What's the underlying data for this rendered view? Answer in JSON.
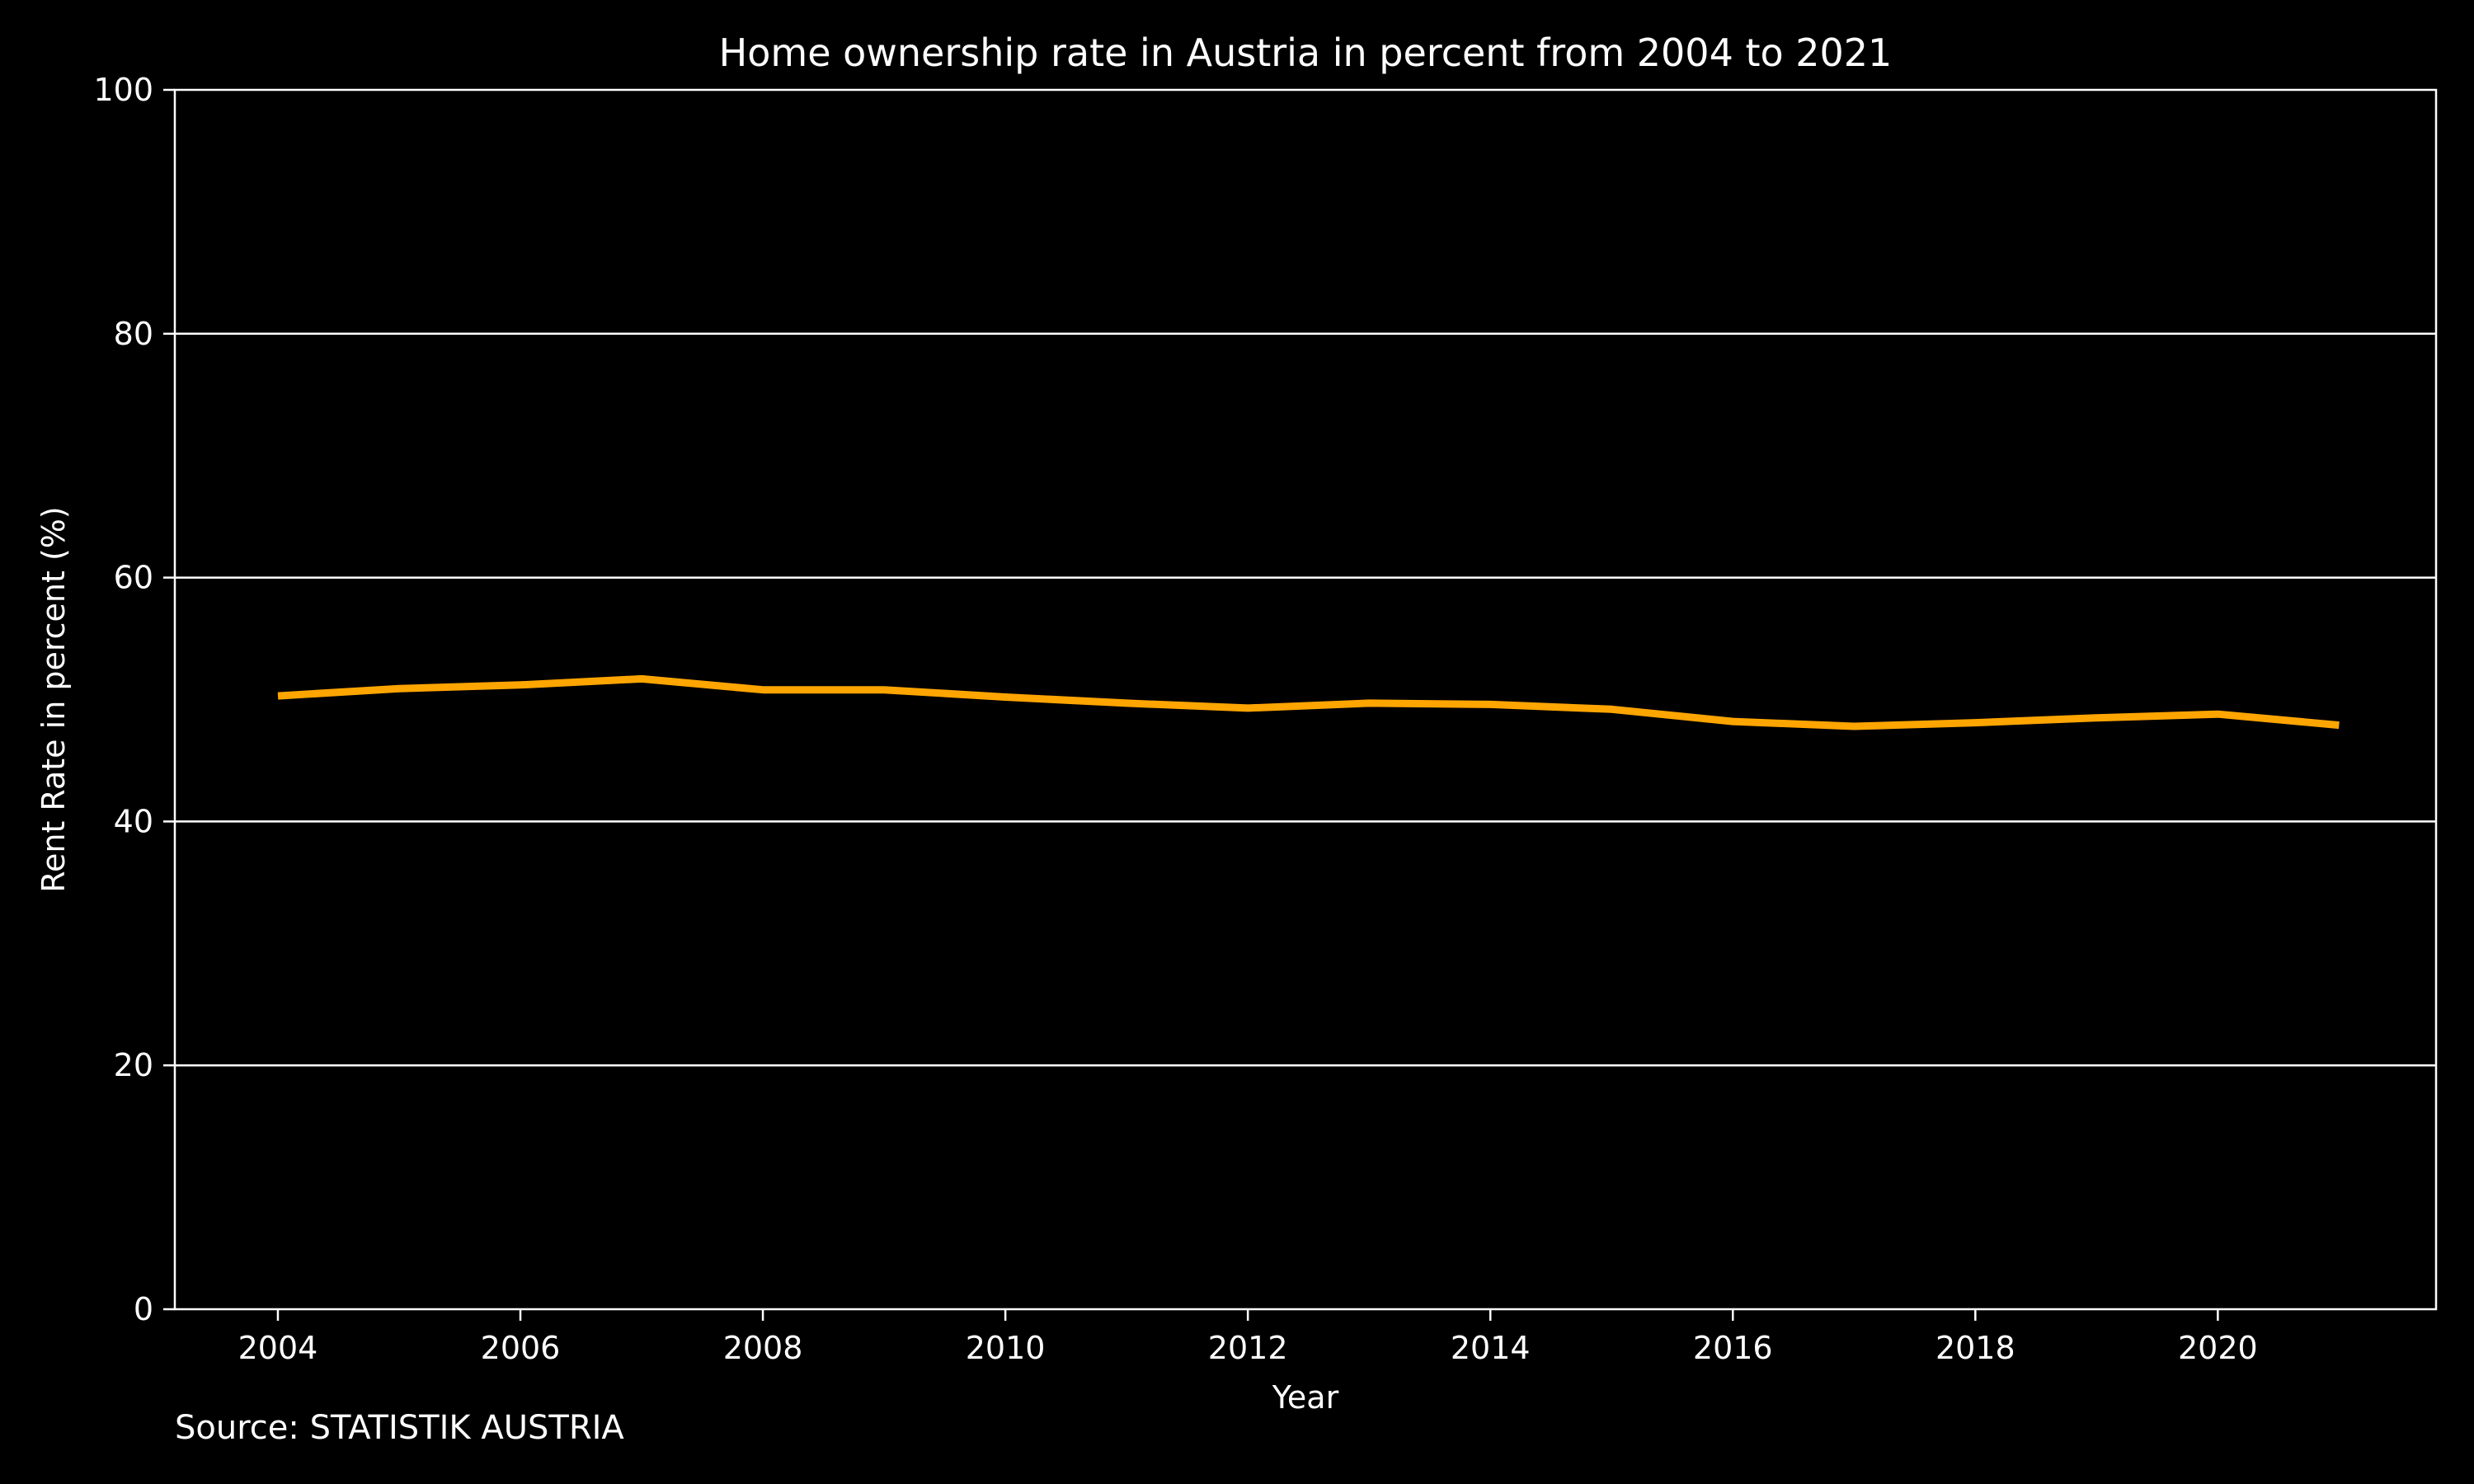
{
  "chart_data": {
    "type": "line",
    "title": "Home ownership rate in Austria in percent from 2004 to 2021",
    "xlabel": "Year",
    "ylabel": "Rent Rate in percent (%)",
    "x": [
      2004,
      2005,
      2006,
      2007,
      2008,
      2009,
      2010,
      2011,
      2012,
      2013,
      2014,
      2015,
      2016,
      2017,
      2018,
      2019,
      2020,
      2021
    ],
    "series": [
      {
        "values": [
          50.3,
          50.9,
          51.2,
          51.7,
          50.8,
          50.8,
          50.2,
          49.7,
          49.3,
          49.7,
          49.6,
          49.2,
          48.2,
          47.8,
          48.1,
          48.5,
          48.8,
          47.9
        ]
      }
    ],
    "xlim": [
      2003.15,
      2021.8
    ],
    "ylim": [
      0,
      100
    ],
    "xticks": [
      2004,
      2006,
      2008,
      2010,
      2012,
      2014,
      2016,
      2018,
      2020
    ],
    "yticks": [
      0,
      20,
      40,
      60,
      80,
      100
    ],
    "grid": "horizontal",
    "line_color": "#ffa500",
    "background": "#000000",
    "foreground": "#ffffff"
  },
  "footer": {
    "source": "Source: STATISTIK AUSTRIA"
  }
}
